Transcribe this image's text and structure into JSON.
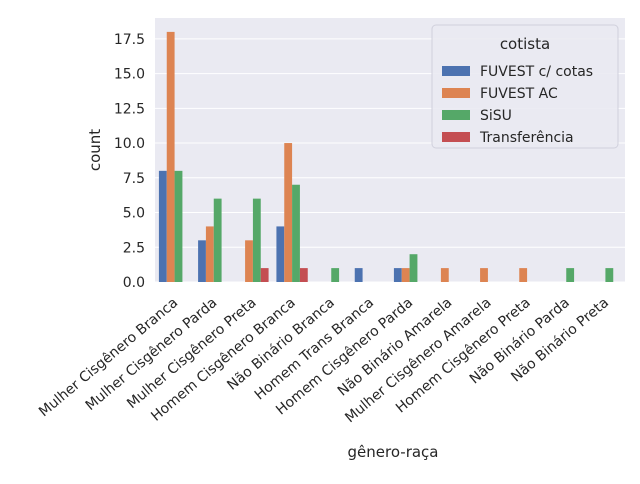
{
  "chart_data": {
    "type": "bar",
    "title": "",
    "xlabel": "gênero-raça",
    "ylabel": "count",
    "ylim": [
      0,
      19
    ],
    "yticks": [
      0.0,
      2.5,
      5.0,
      7.5,
      10.0,
      12.5,
      15.0,
      17.5
    ],
    "ytick_labels": [
      "0.0",
      "2.5",
      "5.0",
      "7.5",
      "10.0",
      "12.5",
      "15.0",
      "17.5"
    ],
    "grid": true,
    "legend": {
      "title": "cotista",
      "placement": "top-right"
    },
    "categories": [
      "Mulher Cisgênero Branca",
      "Mulher Cisgênero Parda",
      "Mulher Cisgênero Preta",
      "Homem Cisgênero Branca",
      "Não Binário Branca",
      "Homem Trans Branca",
      "Homem Cisgênero Parda",
      "Não Binário Amarela",
      "Mulher Cisgênero Amarela",
      "Homem Cisgênero Preta",
      "Não Binário Parda",
      "Não Binário Preta"
    ],
    "series": [
      {
        "name": "FUVEST c/ cotas",
        "color": "#4c72b0",
        "values": [
          8,
          3,
          0,
          4,
          0,
          1,
          1,
          0,
          0,
          0,
          0,
          0
        ]
      },
      {
        "name": "FUVEST AC",
        "color": "#dd8452",
        "values": [
          18,
          4,
          3,
          10,
          0,
          0,
          1,
          1,
          1,
          1,
          0,
          0
        ]
      },
      {
        "name": "SiSU",
        "color": "#55a868",
        "values": [
          8,
          6,
          6,
          7,
          1,
          0,
          2,
          0,
          0,
          0,
          1,
          1
        ]
      },
      {
        "name": "Transferência",
        "color": "#c44e52",
        "values": [
          0,
          0,
          1,
          1,
          0,
          0,
          0,
          0,
          0,
          0,
          0,
          0
        ]
      }
    ],
    "plot_background": "#eaeaf2",
    "grid_color": "#ffffff"
  }
}
